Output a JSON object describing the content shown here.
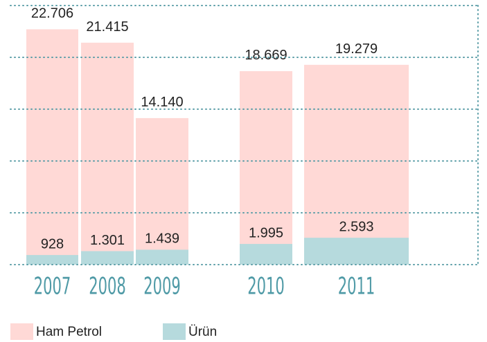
{
  "chart_data": {
    "type": "bar",
    "overlap": true,
    "categories": [
      "2007",
      "2008",
      "2009",
      "2010",
      "2011"
    ],
    "series": [
      {
        "name": "Ham Petrol",
        "color": "#ffd9d6",
        "values": [
          22706,
          21415,
          14140,
          18669,
          19279
        ],
        "value_labels": [
          "22.706",
          "21.415",
          "14.140",
          "18.669",
          "19.279"
        ]
      },
      {
        "name": "Ürün",
        "color": "#b6dadd",
        "values": [
          928,
          1301,
          1439,
          1995,
          2593
        ],
        "value_labels": [
          "928",
          "1.301",
          "1.439",
          "1.995",
          "2.593"
        ]
      }
    ],
    "ylim": [
      0,
      25000
    ],
    "yticks": [
      0,
      5000,
      10000,
      15000,
      20000,
      25000
    ],
    "grid": true
  }
}
